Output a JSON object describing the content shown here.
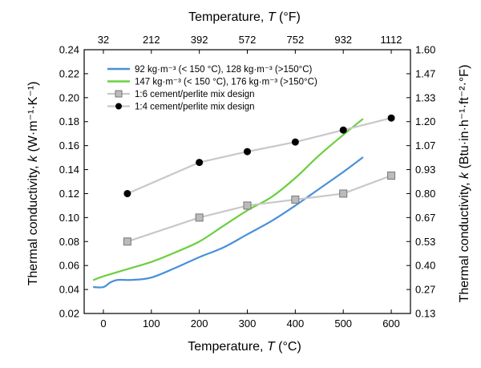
{
  "chart_data": {
    "type": "line",
    "axes": {
      "x_bottom": {
        "label_main": "Temperature, ",
        "label_symbol": "T",
        "label_unit": " (°C)",
        "range": [
          -40,
          640
        ],
        "ticks": [
          0,
          100,
          200,
          300,
          400,
          500,
          600
        ]
      },
      "x_top": {
        "label_main": "Temperature, ",
        "label_symbol": "T",
        "label_unit": " (°F)",
        "ticks": [
          "32",
          "212",
          "392",
          "572",
          "752",
          "932",
          "1112"
        ],
        "tick_positions_celsius": [
          0,
          100,
          200,
          300,
          400,
          500,
          600
        ]
      },
      "y_left": {
        "label_main": "Thermal conductivity, ",
        "label_symbol": "k",
        "label_unit": " (W·m⁻¹·K⁻¹)",
        "range": [
          0.02,
          0.24
        ],
        "ticks": [
          "0.02",
          "0.04",
          "0.06",
          "0.08",
          "0.10",
          "0.12",
          "0.14",
          "0.16",
          "0.18",
          "0.20",
          "0.22",
          "0.24"
        ]
      },
      "y_right": {
        "label_main": "Thermal conductivity, ",
        "label_symbol": "k",
        "label_unit": " (Btu·in·h⁻¹·ft⁻²·°F)",
        "ticks": [
          "0.13",
          "0.27",
          "0.40",
          "0.53",
          "0.67",
          "0.80",
          "0.93",
          "1.07",
          "1.20",
          "1.33",
          "1.47",
          "1.60"
        ]
      }
    },
    "legend_position": "top-left",
    "grid": false,
    "series": [
      {
        "name": "92 kg·m⁻³ (< 150 °C), 128 kg·m⁻³ (>150°C)",
        "style": "line",
        "color": "#4a90d9",
        "x": [
          -20,
          0,
          15,
          30,
          60,
          100,
          150,
          200,
          250,
          300,
          350,
          400,
          450,
          500,
          540
        ],
        "y": [
          0.042,
          0.042,
          0.046,
          0.048,
          0.048,
          0.05,
          0.058,
          0.067,
          0.075,
          0.086,
          0.097,
          0.11,
          0.124,
          0.138,
          0.15
        ]
      },
      {
        "name": "147 kg·m⁻³ (< 150 °C), 176 kg·m⁻³ (>150°C)",
        "style": "line",
        "color": "#6bcf3f",
        "x": [
          -20,
          0,
          50,
          100,
          150,
          200,
          250,
          300,
          350,
          400,
          450,
          500,
          540
        ],
        "y": [
          0.048,
          0.051,
          0.057,
          0.063,
          0.071,
          0.08,
          0.093,
          0.106,
          0.117,
          0.133,
          0.152,
          0.169,
          0.182
        ]
      },
      {
        "name": "1:6 cement/perlite mix design",
        "style": "line+marker",
        "marker": "square",
        "color": "#c8c8c8",
        "marker_fill": "#bbbbbb",
        "x": [
          50,
          200,
          300,
          400,
          500,
          600
        ],
        "y": [
          0.08,
          0.1,
          0.11,
          0.115,
          0.12,
          0.135
        ]
      },
      {
        "name": "1:4 cement/perlite mix design",
        "style": "line+marker",
        "marker": "circle",
        "color": "#c8c8c8",
        "marker_fill": "#000000",
        "x": [
          50,
          200,
          300,
          400,
          500,
          600
        ],
        "y": [
          0.12,
          0.146,
          0.155,
          0.163,
          0.173,
          0.183
        ]
      }
    ]
  }
}
